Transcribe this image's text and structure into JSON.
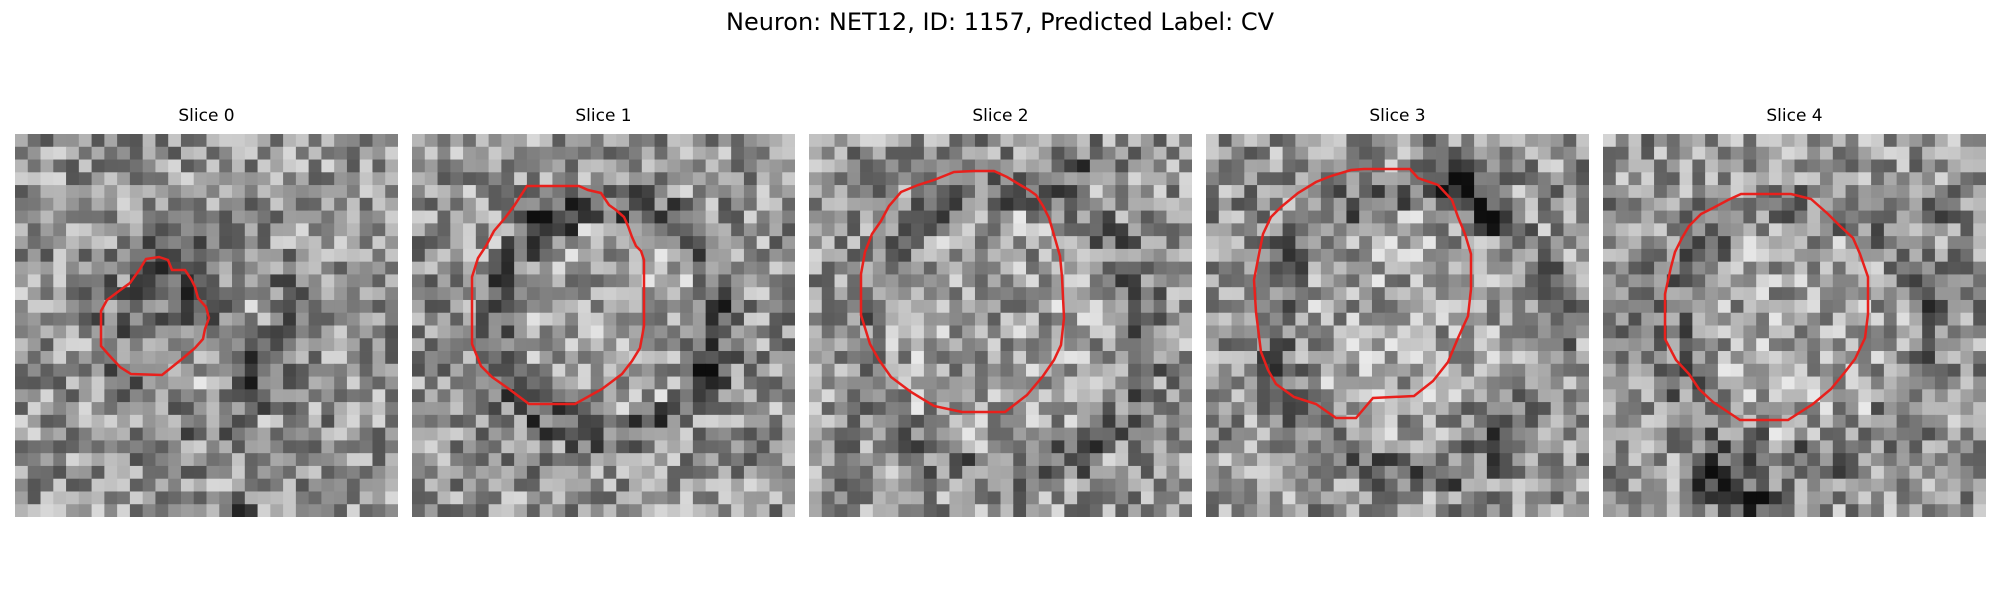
{
  "figure": {
    "title": "Neuron: NET12, ID: 1157, Predicted Label: CV"
  },
  "panels": [
    {
      "title": "Slice 0"
    },
    {
      "title": "Slice 1"
    },
    {
      "title": "Slice 2"
    },
    {
      "title": "Slice 3"
    },
    {
      "title": "Slice 4"
    }
  ],
  "colors": {
    "contour": "#e8201c"
  }
}
